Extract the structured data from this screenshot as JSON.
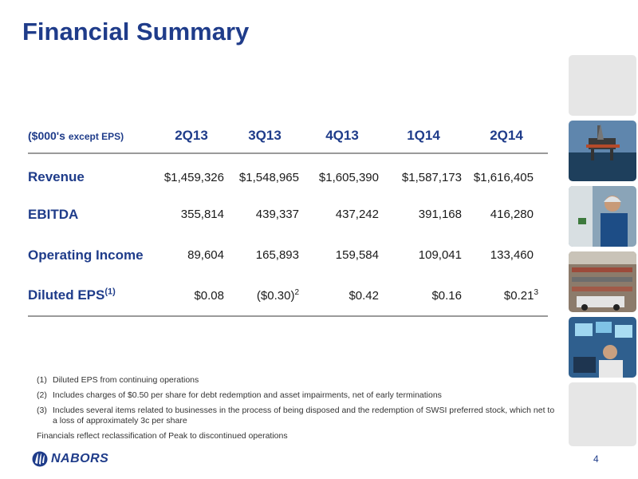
{
  "title": "Financial Summary",
  "table": {
    "header": {
      "label_main": "($000's",
      "label_small": "except EPS)",
      "periods": [
        "2Q13",
        "3Q13",
        "4Q13",
        "1Q14",
        "2Q14"
      ]
    },
    "rows": [
      {
        "label": "Revenue",
        "values": [
          "$1,459,326",
          "$1,548,965",
          "$1,605,390",
          "$1,587,173",
          "$1,616,405"
        ]
      },
      {
        "label": "EBITDA",
        "values": [
          "355,814",
          "439,337",
          "437,242",
          "391,168",
          "416,280"
        ]
      },
      {
        "label": "Operating Income",
        "values": [
          "89,604",
          "165,893",
          "159,584",
          "109,041",
          "133,460"
        ]
      },
      {
        "label": "Diluted EPS",
        "label_sup": "(1)",
        "values": [
          "$0.08",
          "($0.30)",
          "$0.42",
          "$0.16",
          "$0.21"
        ],
        "sups": [
          "",
          "2",
          "",
          "",
          "3"
        ]
      }
    ]
  },
  "footnotes": [
    {
      "num": "(1)",
      "text": "Diluted EPS from continuing operations"
    },
    {
      "num": "(2)",
      "text": "Includes charges of $0.50 per share for debt redemption and asset impairments, net of early terminations"
    },
    {
      "num": "(3)",
      "text": "Includes several items related to businesses in the process of being disposed and the redemption of SWSI preferred stock, which net to a loss of approximately 3c per share"
    }
  ],
  "footnote_plain": "Financials reflect reclassification of Peak to discontinued operations",
  "logo_text": "NABORS",
  "page_number": "4",
  "colors": {
    "brand_blue": "#1f3c8a",
    "rule_grey": "#9a9a9a"
  },
  "thumbnails": [
    "blank-tile",
    "offshore-rig-photo",
    "worker-photo",
    "pipe-yard-photo",
    "control-room-photo",
    "blank-tile"
  ]
}
